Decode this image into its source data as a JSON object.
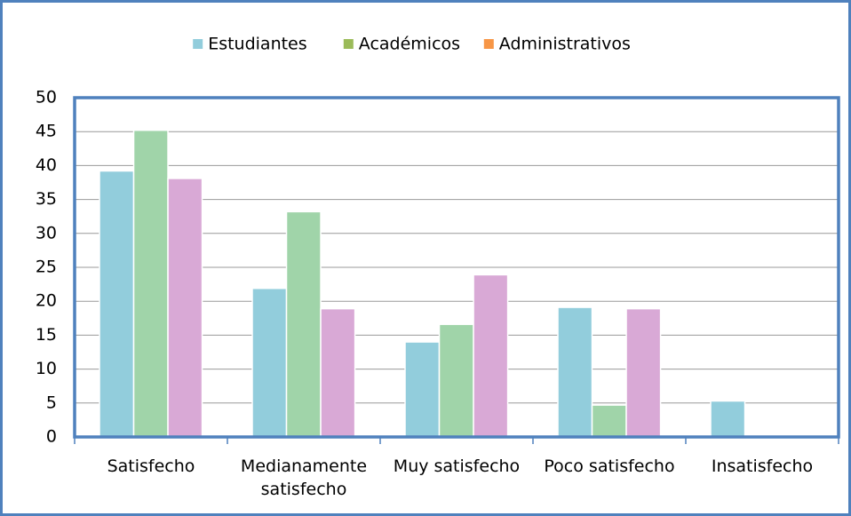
{
  "chart_data": {
    "type": "bar",
    "categories": [
      "Satisfecho",
      "Medianamente satisfecho",
      "Muy satisfecho",
      "Poco satisfecho",
      "Insatisfecho"
    ],
    "series": [
      {
        "name": "Estudiantes",
        "color": "#92cddc",
        "legend_color": "#92cddc",
        "values": [
          39.2,
          21.9,
          14,
          19.1,
          5.3
        ]
      },
      {
        "name": "Académicos",
        "color": "#a0d4a9",
        "legend_color": "#9bbb59",
        "values": [
          45.2,
          33.2,
          16.6,
          4.7,
          0
        ]
      },
      {
        "name": "Administrativos",
        "color": "#d9a9d6",
        "legend_color": "#f79646",
        "values": [
          38.1,
          18.9,
          23.9,
          18.9,
          0
        ]
      }
    ],
    "ylim": [
      0,
      50
    ],
    "yticks": [
      0,
      5,
      10,
      15,
      20,
      25,
      30,
      35,
      40,
      45,
      50
    ],
    "grid": true,
    "legend": "top"
  }
}
